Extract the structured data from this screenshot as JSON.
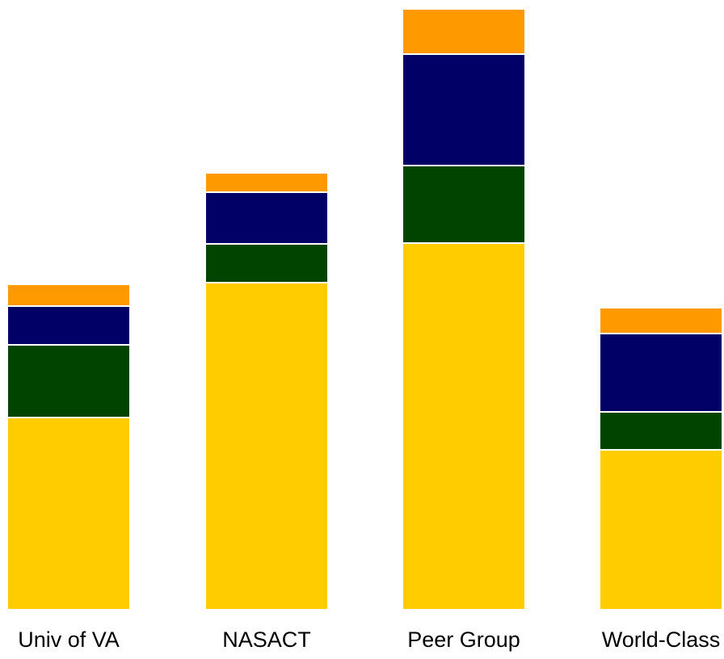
{
  "chart_data": {
    "type": "bar",
    "stacked": true,
    "categories": [
      "Univ of VA",
      "NASACT",
      "Peer Group",
      "World-Class"
    ],
    "series": [
      {
        "values": [
          238,
          405,
          454,
          198
        ],
        "color": "#FFCC00"
      },
      {
        "values": [
          90,
          48,
          96,
          47
        ],
        "color": "#004400"
      },
      {
        "values": [
          48,
          64,
          138,
          97
        ],
        "color": "#000066"
      },
      {
        "values": [
          27,
          24,
          56,
          32
        ],
        "color": "#FF9900"
      }
    ],
    "ylim": [
      0,
      745
    ],
    "grid": false,
    "legend": "none",
    "title": "",
    "xlabel": "",
    "ylabel": ""
  }
}
